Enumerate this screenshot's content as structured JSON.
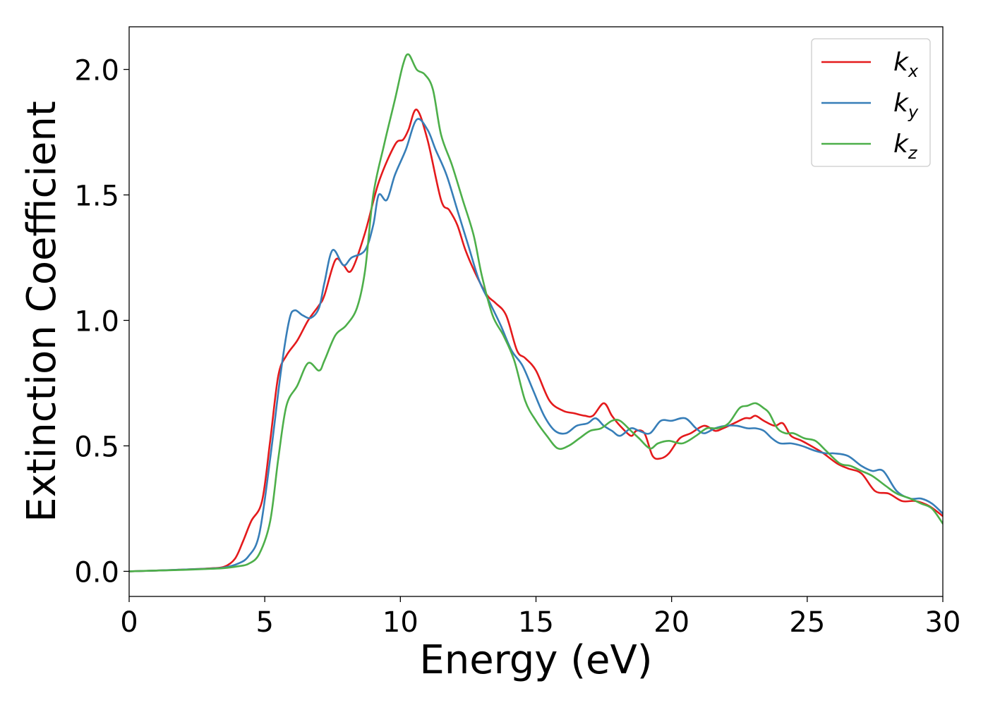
{
  "chart_data": {
    "type": "line",
    "xlabel": "Energy (eV)",
    "ylabel": "Extinction Coefficient",
    "xlim": [
      0,
      30
    ],
    "ylim": [
      -0.1,
      2.17
    ],
    "xticks": [
      0,
      5,
      10,
      15,
      20,
      25,
      30
    ],
    "yticks": [
      0.0,
      0.5,
      1.0,
      1.5,
      2.0
    ],
    "xtick_labels": [
      "0",
      "5",
      "10",
      "15",
      "20",
      "25",
      "30"
    ],
    "ytick_labels": [
      "0.0",
      "0.5",
      "1.0",
      "1.5",
      "2.0"
    ],
    "grid": false,
    "legend_position": "top-right",
    "series": [
      {
        "name": "k_x",
        "label_main": "k",
        "label_sub": "x",
        "color": "#e41a1c",
        "x": [
          0,
          1,
          2,
          3,
          3.5,
          3.9,
          4.2,
          4.5,
          4.9,
          5.2,
          5.5,
          5.8,
          6.2,
          6.6,
          7.0,
          7.2,
          7.6,
          7.9,
          8.2,
          8.7,
          9.2,
          9.8,
          10.1,
          10.3,
          10.6,
          11.0,
          11.5,
          11.8,
          12.1,
          12.4,
          12.8,
          13.2,
          13.5,
          13.9,
          14.3,
          14.6,
          15.0,
          15.5,
          16.0,
          16.4,
          16.8,
          17.1,
          17.5,
          17.8,
          18.1,
          18.5,
          18.7,
          19.0,
          19.3,
          19.6,
          19.9,
          20.3,
          20.7,
          21.2,
          21.6,
          21.9,
          22.3,
          22.7,
          22.9,
          23.1,
          23.4,
          23.8,
          24.1,
          24.4,
          24.8,
          25.3,
          25.6,
          26.1,
          26.5,
          27.0,
          27.5,
          28.0,
          28.5,
          29.0,
          29.5,
          30.0
        ],
        "y": [
          0.0,
          0.003,
          0.007,
          0.012,
          0.018,
          0.05,
          0.12,
          0.2,
          0.28,
          0.52,
          0.78,
          0.86,
          0.92,
          1.0,
          1.06,
          1.1,
          1.24,
          1.22,
          1.2,
          1.35,
          1.55,
          1.7,
          1.72,
          1.76,
          1.84,
          1.72,
          1.48,
          1.44,
          1.38,
          1.28,
          1.18,
          1.1,
          1.07,
          1.02,
          0.88,
          0.85,
          0.8,
          0.68,
          0.64,
          0.63,
          0.62,
          0.62,
          0.67,
          0.62,
          0.58,
          0.54,
          0.56,
          0.55,
          0.46,
          0.45,
          0.47,
          0.53,
          0.55,
          0.58,
          0.56,
          0.57,
          0.59,
          0.61,
          0.61,
          0.62,
          0.6,
          0.58,
          0.59,
          0.54,
          0.52,
          0.49,
          0.47,
          0.43,
          0.41,
          0.39,
          0.32,
          0.31,
          0.28,
          0.28,
          0.26,
          0.22
        ]
      },
      {
        "name": "k_y",
        "label_main": "k",
        "label_sub": "y",
        "color": "#377eb8",
        "x": [
          0,
          1,
          2,
          3,
          3.5,
          4.0,
          4.4,
          4.8,
          5.2,
          5.6,
          5.9,
          6.1,
          6.4,
          6.7,
          7.0,
          7.2,
          7.5,
          7.9,
          8.2,
          8.7,
          9.0,
          9.2,
          9.5,
          9.8,
          10.2,
          10.6,
          11.0,
          11.3,
          11.7,
          12.1,
          12.5,
          12.9,
          13.3,
          13.7,
          14.1,
          14.5,
          14.9,
          15.3,
          15.7,
          16.1,
          16.5,
          16.9,
          17.2,
          17.5,
          17.8,
          18.1,
          18.5,
          18.8,
          19.2,
          19.6,
          20.0,
          20.5,
          20.9,
          21.2,
          21.6,
          22.0,
          22.4,
          22.8,
          23.1,
          23.4,
          23.7,
          24.0,
          24.4,
          24.8,
          25.3,
          25.7,
          26.0,
          26.5,
          27.0,
          27.4,
          27.8,
          28.3,
          28.8,
          29.2,
          29.6,
          30.0
        ],
        "y": [
          0.0,
          0.003,
          0.007,
          0.011,
          0.015,
          0.03,
          0.06,
          0.15,
          0.45,
          0.8,
          1.0,
          1.04,
          1.02,
          1.01,
          1.05,
          1.15,
          1.28,
          1.22,
          1.25,
          1.28,
          1.38,
          1.5,
          1.48,
          1.58,
          1.68,
          1.8,
          1.76,
          1.68,
          1.58,
          1.44,
          1.3,
          1.16,
          1.07,
          0.98,
          0.88,
          0.82,
          0.72,
          0.62,
          0.56,
          0.55,
          0.58,
          0.59,
          0.61,
          0.58,
          0.56,
          0.54,
          0.57,
          0.56,
          0.55,
          0.6,
          0.6,
          0.61,
          0.57,
          0.55,
          0.57,
          0.58,
          0.58,
          0.57,
          0.57,
          0.56,
          0.53,
          0.51,
          0.51,
          0.5,
          0.48,
          0.47,
          0.47,
          0.46,
          0.42,
          0.4,
          0.4,
          0.32,
          0.29,
          0.29,
          0.27,
          0.23
        ]
      },
      {
        "name": "k_z",
        "label_main": "k",
        "label_sub": "z",
        "color": "#4daf4a",
        "x": [
          0,
          1,
          2,
          3,
          3.5,
          4.0,
          4.4,
          4.8,
          5.2,
          5.5,
          5.8,
          6.2,
          6.6,
          7.0,
          7.2,
          7.6,
          8.0,
          8.4,
          8.7,
          9.0,
          9.4,
          9.8,
          10.1,
          10.3,
          10.6,
          10.9,
          11.2,
          11.5,
          11.9,
          12.3,
          12.7,
          13.0,
          13.4,
          13.8,
          14.2,
          14.6,
          15.0,
          15.4,
          15.8,
          16.2,
          16.6,
          17.0,
          17.4,
          17.8,
          18.1,
          18.5,
          18.8,
          19.2,
          19.5,
          19.9,
          20.4,
          20.9,
          21.3,
          21.7,
          22.1,
          22.5,
          22.8,
          23.1,
          23.4,
          23.6,
          23.9,
          24.2,
          24.5,
          24.9,
          25.3,
          25.7,
          26.2,
          26.6,
          27.0,
          27.4,
          27.9,
          28.3,
          28.8,
          29.2,
          29.6,
          30.0
        ],
        "y": [
          0.0,
          0.003,
          0.006,
          0.01,
          0.013,
          0.02,
          0.03,
          0.07,
          0.2,
          0.45,
          0.66,
          0.74,
          0.83,
          0.8,
          0.84,
          0.94,
          0.98,
          1.05,
          1.2,
          1.5,
          1.7,
          1.88,
          2.02,
          2.06,
          2.0,
          1.98,
          1.92,
          1.74,
          1.62,
          1.48,
          1.34,
          1.18,
          1.02,
          0.94,
          0.84,
          0.68,
          0.6,
          0.54,
          0.49,
          0.5,
          0.53,
          0.56,
          0.57,
          0.6,
          0.6,
          0.56,
          0.53,
          0.49,
          0.51,
          0.52,
          0.51,
          0.54,
          0.57,
          0.57,
          0.59,
          0.65,
          0.66,
          0.67,
          0.65,
          0.63,
          0.57,
          0.55,
          0.55,
          0.53,
          0.52,
          0.48,
          0.43,
          0.42,
          0.4,
          0.38,
          0.34,
          0.31,
          0.29,
          0.27,
          0.25,
          0.19
        ]
      }
    ]
  }
}
